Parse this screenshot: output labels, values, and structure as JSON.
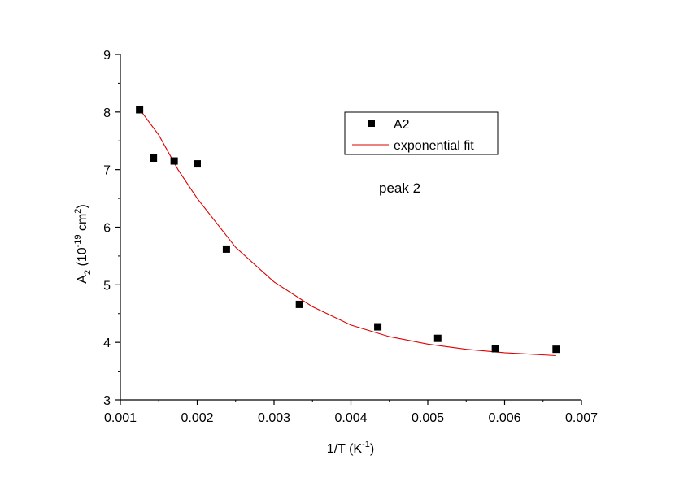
{
  "chart_data": {
    "type": "scatter",
    "xlabel": "1/T (K",
    "xlabel_sup": "-1",
    "xlabel_end": ")",
    "ylabel_main": "A",
    "ylabel_sub": "2",
    "ylabel_mid": " (10",
    "ylabel_sup1": "-19",
    "ylabel_unit": " cm",
    "ylabel_sup2": "2",
    "ylabel_end": ")",
    "xlim": [
      0.001,
      0.007
    ],
    "ylim": [
      3,
      9
    ],
    "x_ticks": [
      "0.001",
      "0.002",
      "0.003",
      "0.004",
      "0.005",
      "0.006",
      "0.007"
    ],
    "y_ticks": [
      "3",
      "4",
      "5",
      "6",
      "7",
      "8",
      "9"
    ],
    "grid": false,
    "legend_position": "top-right",
    "annotation": "peak 2",
    "series": [
      {
        "name": "A2",
        "kind": "scatter",
        "marker": "square",
        "color": "#000000",
        "x": [
          0.00125,
          0.00143,
          0.0017,
          0.002,
          0.00238,
          0.00333,
          0.00435,
          0.00513,
          0.00588,
          0.00667
        ],
        "y": [
          8.04,
          7.2,
          7.15,
          7.1,
          5.62,
          4.66,
          4.27,
          4.07,
          3.89,
          3.88
        ]
      },
      {
        "name": "exponential fit",
        "kind": "line",
        "color": "#dd0000",
        "x": [
          0.00125,
          0.0015,
          0.00175,
          0.002,
          0.0025,
          0.003,
          0.0035,
          0.004,
          0.0045,
          0.005,
          0.0055,
          0.006,
          0.00667
        ],
        "y": [
          8.05,
          7.6,
          7.0,
          6.5,
          5.65,
          5.05,
          4.62,
          4.3,
          4.1,
          3.97,
          3.88,
          3.82,
          3.77
        ]
      }
    ]
  }
}
